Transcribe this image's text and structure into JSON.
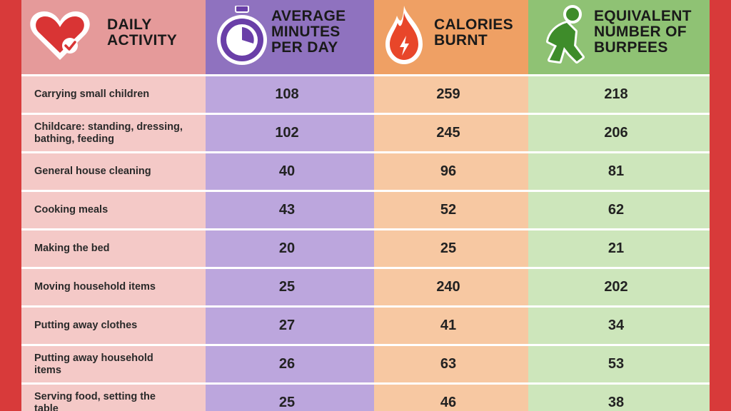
{
  "colors": {
    "border": "#d83a3a",
    "activity_header": "#e59a9a",
    "activity_body": "#f4c9c7",
    "minutes_header": "#8f72bf",
    "minutes_body": "#bca6dd",
    "calories_header": "#efa064",
    "calories_body": "#f7c8a2",
    "burpees_header": "#8fc274",
    "burpees_body": "#cde6bb",
    "heart_icon": "#d93434",
    "stopwatch_icon": "#6a3fa8",
    "flame_icon": "#e8462a",
    "figure_icon": "#3e8c2a"
  },
  "chart_data": {
    "type": "table",
    "columns": [
      {
        "title": "DAILY ACTIVITY",
        "icon": "heart-check-icon"
      },
      {
        "title": "AVERAGE MINUTES PER DAY",
        "icon": "stopwatch-icon"
      },
      {
        "title": "CALORIES BURNT",
        "icon": "flame-icon"
      },
      {
        "title": "EQUIVALENT NUMBER OF BURPEES",
        "icon": "squatting-figure-icon"
      }
    ],
    "header_lines": [
      [
        "DAILY",
        "ACTIVITY"
      ],
      [
        "AVERAGE",
        "MINUTES",
        "PER DAY"
      ],
      [
        "CALORIES",
        "BURNT"
      ],
      [
        "EQUIVALENT",
        "NUMBER OF",
        "BURPEES"
      ]
    ],
    "rows": [
      {
        "activity": "Carrying small children",
        "lines": [
          "Carrying small children"
        ],
        "minutes": 108,
        "calories": 259,
        "burpees": 218
      },
      {
        "activity": "Childcare: standing, dressing, bathing, feeding",
        "lines": [
          "Childcare: standing, dressing,",
          "bathing, feeding"
        ],
        "minutes": 102,
        "calories": 245,
        "burpees": 206
      },
      {
        "activity": "General house cleaning",
        "lines": [
          "General house cleaning"
        ],
        "minutes": 40,
        "calories": 96,
        "burpees": 81
      },
      {
        "activity": "Cooking meals",
        "lines": [
          "Cooking meals"
        ],
        "minutes": 43,
        "calories": 52,
        "burpees": 62
      },
      {
        "activity": "Making the bed",
        "lines": [
          "Making the bed"
        ],
        "minutes": 20,
        "calories": 25,
        "burpees": 21
      },
      {
        "activity": "Moving household items",
        "lines": [
          "Moving household items"
        ],
        "minutes": 25,
        "calories": 240,
        "burpees": 202
      },
      {
        "activity": "Putting away clothes",
        "lines": [
          "Putting away clothes"
        ],
        "minutes": 27,
        "calories": 41,
        "burpees": 34
      },
      {
        "activity": "Putting away household items",
        "lines": [
          "Putting away household",
          "items"
        ],
        "minutes": 26,
        "calories": 63,
        "burpees": 53
      },
      {
        "activity": "Serving food, setting the table",
        "lines": [
          "Serving food, setting the",
          "table"
        ],
        "minutes": 25,
        "calories": 46,
        "burpees": 38
      }
    ]
  }
}
